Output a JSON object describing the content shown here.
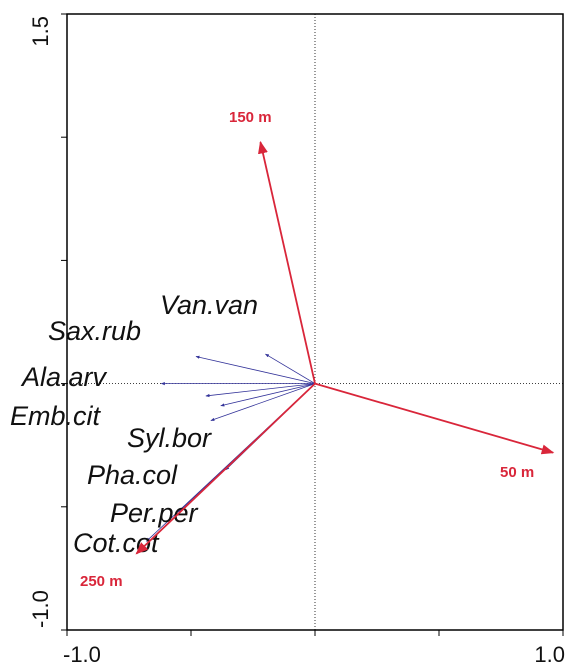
{
  "chart_data": {
    "type": "biplot",
    "xlim": [
      -1,
      1
    ],
    "ylim": [
      -1,
      1.5
    ],
    "xticks": [
      {
        "value": -1,
        "label": "-1.0"
      },
      {
        "value": 1,
        "label": "1.0"
      }
    ],
    "yticks": [
      {
        "value": -1,
        "label": "-1.0"
      },
      {
        "value": 1.5,
        "label": "1.5"
      }
    ],
    "xminorticks": [
      -0.5,
      0,
      0.5
    ],
    "yminorticks": [
      -0.5,
      0,
      0.5,
      1
    ],
    "env_color": "#d9263a",
    "species_color": "#333399",
    "env_vectors": [
      {
        "name": "150 m",
        "x": -0.22,
        "y": 0.98
      },
      {
        "name": "50 m",
        "x": 0.96,
        "y": -0.28
      },
      {
        "name": "250 m",
        "x": -0.72,
        "y": -0.69
      }
    ],
    "species": [
      {
        "name": "Van.van",
        "x": -0.2,
        "y": 0.12
      },
      {
        "name": "Sax.rub",
        "x": -0.48,
        "y": 0.11
      },
      {
        "name": "Ala.arv",
        "x": -0.62,
        "y": 0.0
      },
      {
        "name": "Emb.cit",
        "x": -0.44,
        "y": -0.05
      },
      {
        "name": null,
        "x": -0.38,
        "y": -0.09
      },
      {
        "name": "Syl.bor",
        "x": -0.42,
        "y": -0.15
      },
      {
        "name": "Pha.col",
        "x": -0.36,
        "y": -0.35
      },
      {
        "name": "Per.per",
        "x": -0.55,
        "y": -0.52
      },
      {
        "name": "Cot.cot",
        "x": -0.68,
        "y": -0.64
      }
    ]
  }
}
